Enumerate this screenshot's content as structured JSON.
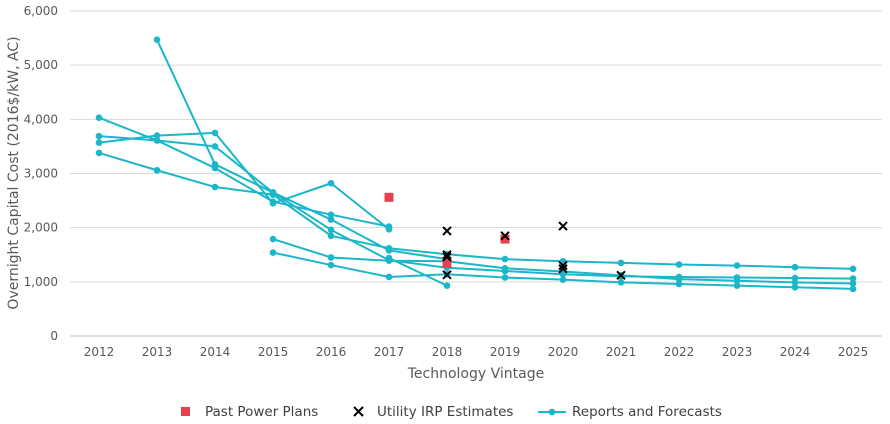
{
  "chart_data": {
    "type": "line",
    "title": "",
    "xlabel": "Technology Vintage",
    "ylabel": "Overnight Capital Cost (2016$/kW, AC)",
    "x_categories": [
      "2012",
      "2013",
      "2014",
      "2015",
      "2016",
      "2017",
      "2018",
      "2019",
      "2020",
      "2021",
      "2022",
      "2023",
      "2024",
      "2025"
    ],
    "ylim": [
      0,
      6000
    ],
    "y_ticks": [
      0,
      1000,
      2000,
      3000,
      4000,
      5000,
      6000
    ],
    "y_tick_labels": [
      "0",
      "1,000",
      "2,000",
      "3,000",
      "4,000",
      "5,000",
      "6,000"
    ],
    "grid": "horizontal",
    "legend_position": "bottom",
    "legend": [
      {
        "label": "Past Power Plans",
        "marker": "square",
        "color": "#E8414E"
      },
      {
        "label": "Utility IRP Estimates",
        "marker": "x",
        "color": "#000000"
      },
      {
        "label": "Reports and Forecasts",
        "marker": "line-circle",
        "color": "#1BB7C9"
      }
    ],
    "past_power_plans": [
      {
        "x": "2017",
        "y": 2560
      },
      {
        "x": "2018",
        "y": 1340
      },
      {
        "x": "2019",
        "y": 1790
      }
    ],
    "utility_irp_estimates": [
      {
        "x": "2018",
        "y": 1940
      },
      {
        "x": "2018",
        "y": 1500
      },
      {
        "x": "2018",
        "y": 1460
      },
      {
        "x": "2018",
        "y": 1130
      },
      {
        "x": "2019",
        "y": 1850
      },
      {
        "x": "2020",
        "y": 2030
      },
      {
        "x": "2020",
        "y": 1300
      },
      {
        "x": "2020",
        "y": 1240
      },
      {
        "x": "2021",
        "y": 1120
      }
    ],
    "reports_and_forecasts": [
      {
        "points": [
          [
            "2012",
            4030
          ],
          [
            "2013",
            3610
          ],
          [
            "2014",
            3100
          ],
          [
            "2015",
            2480
          ],
          [
            "2016",
            2240
          ],
          [
            "2017",
            2020
          ]
        ]
      },
      {
        "points": [
          [
            "2012",
            3690
          ],
          [
            "2013",
            3610
          ],
          [
            "2014",
            3500
          ],
          [
            "2015",
            2650
          ],
          [
            "2016",
            2150
          ],
          [
            "2017",
            1580
          ],
          [
            "2018",
            1420
          ]
        ]
      },
      {
        "points": [
          [
            "2012",
            3570
          ],
          [
            "2013",
            3700
          ],
          [
            "2014",
            3750
          ],
          [
            "2015",
            2450
          ],
          [
            "2016",
            2820
          ],
          [
            "2017",
            1970
          ]
        ]
      },
      {
        "points": [
          [
            "2012",
            3380
          ],
          [
            "2013",
            3060
          ],
          [
            "2014",
            2750
          ],
          [
            "2015",
            2610
          ],
          [
            "2016",
            1850
          ],
          [
            "2017",
            1620
          ],
          [
            "2018",
            1510
          ],
          [
            "2019",
            1420
          ],
          [
            "2020",
            1380
          ],
          [
            "2021",
            1350
          ],
          [
            "2022",
            1320
          ],
          [
            "2023",
            1300
          ],
          [
            "2024",
            1270
          ],
          [
            "2025",
            1240
          ]
        ]
      },
      {
        "points": [
          [
            "2013",
            5470
          ],
          [
            "2014",
            3170
          ],
          [
            "2015",
            2650
          ],
          [
            "2016",
            1960
          ],
          [
            "2017",
            1400
          ],
          [
            "2018",
            1260
          ],
          [
            "2019",
            1200
          ],
          [
            "2020",
            1140
          ],
          [
            "2021",
            1100
          ],
          [
            "2022",
            1090
          ],
          [
            "2023",
            1080
          ],
          [
            "2024",
            1070
          ],
          [
            "2025",
            1060
          ]
        ]
      },
      {
        "points": [
          [
            "2015",
            1790
          ],
          [
            "2016",
            1450
          ],
          [
            "2017",
            1390
          ],
          [
            "2018",
            1380
          ],
          [
            "2019",
            1250
          ],
          [
            "2020",
            1190
          ],
          [
            "2021",
            1120
          ],
          [
            "2022",
            1050
          ],
          [
            "2023",
            1020
          ],
          [
            "2024",
            990
          ],
          [
            "2025",
            970
          ]
        ]
      },
      {
        "points": [
          [
            "2015",
            1540
          ],
          [
            "2016",
            1310
          ],
          [
            "2017",
            1090
          ],
          [
            "2018",
            1140
          ],
          [
            "2019",
            1080
          ],
          [
            "2020",
            1040
          ],
          [
            "2021",
            990
          ],
          [
            "2022",
            960
          ],
          [
            "2023",
            930
          ],
          [
            "2024",
            900
          ],
          [
            "2025",
            870
          ]
        ]
      },
      {
        "points": [
          [
            "2017",
            1440
          ],
          [
            "2018",
            930
          ]
        ]
      }
    ]
  }
}
